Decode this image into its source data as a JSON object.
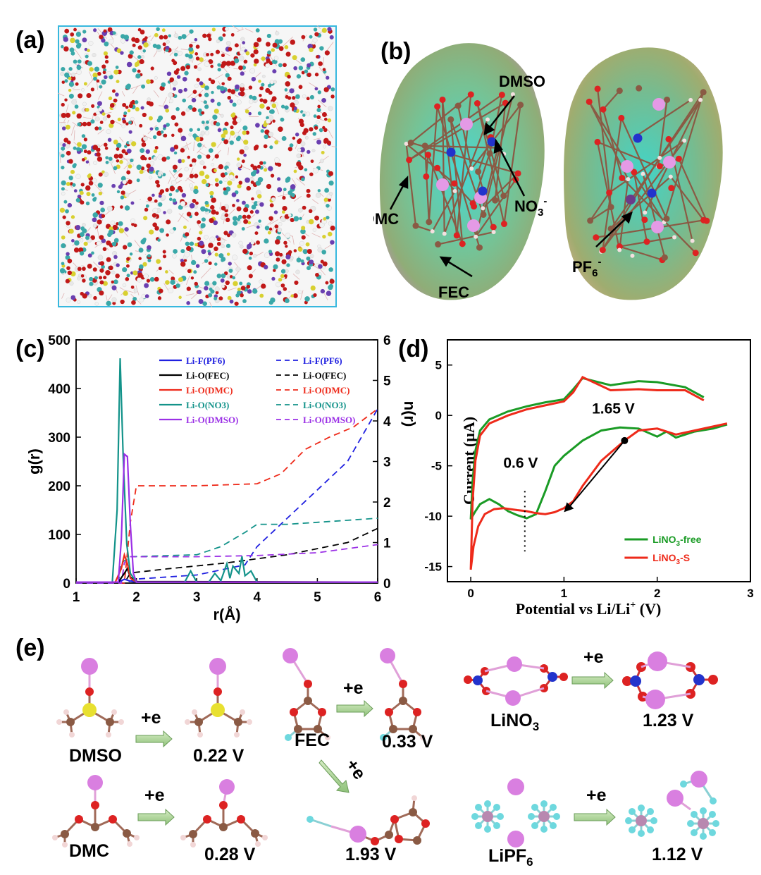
{
  "figure": {
    "panel_a": {
      "label": "(a)"
    },
    "panel_b": {
      "label": "(b)",
      "annotations": {
        "dmso": "DMSO",
        "no3": "NO",
        "no3_sub": "3",
        "no3_sup": "-",
        "dmc": "DMC",
        "fec": "FEC",
        "pf6": "PF",
        "pf6_sub": "6",
        "pf6_sup": "-"
      }
    },
    "panel_c": {
      "label": "(c)",
      "chart_data": {
        "type": "line",
        "xlabel": "r(Å)",
        "ylabel_left": "g(r)",
        "ylabel_right": "n(r)",
        "xlim": [
          1,
          6
        ],
        "ylim_left": [
          0,
          500
        ],
        "ylim_right": [
          0,
          6
        ],
        "x_ticks": [
          "1",
          "2",
          "3",
          "4",
          "5",
          "6"
        ],
        "y_ticks_left": [
          "0",
          "100",
          "200",
          "300",
          "400",
          "500"
        ],
        "y_ticks_right": [
          "0",
          "1",
          "2",
          "3",
          "4",
          "5",
          "6"
        ],
        "legend_solid": [
          "Li-F(PF6)",
          "Li-O(FEC)",
          "Li-O(DMC)",
          "Li-O(NO3)",
          "Li-O(DMSO)"
        ],
        "legend_dashed": [
          "Li-F(PF6)",
          "Li-O(FEC)",
          "Li-O(DMC)",
          "Li-O(NO3)",
          "Li-O(DMSO)"
        ],
        "colors": [
          "#2020e0",
          "#000000",
          "#ee2a1a",
          "#13938a",
          "#9b30e6"
        ],
        "series_solid": [
          {
            "name": "Li-F(PF6)",
            "x": [
              1.0,
              1.7,
              1.8,
              1.9,
              2.0,
              6.0
            ],
            "y": [
              2,
              2,
              8,
              4,
              2,
              2
            ]
          },
          {
            "name": "Li-O(FEC)",
            "x": [
              1.0,
              1.7,
              1.8,
              1.85,
              1.9,
              2.0,
              6.0
            ],
            "y": [
              2,
              2,
              20,
              30,
              12,
              3,
              2
            ]
          },
          {
            "name": "Li-O(DMC)",
            "x": [
              1.0,
              1.65,
              1.75,
              1.8,
              1.85,
              1.9,
              2.0,
              6.0
            ],
            "y": [
              2,
              2,
              30,
              58,
              40,
              10,
              2,
              2
            ]
          },
          {
            "name": "Li-O(NO3)",
            "x": [
              1.0,
              1.6,
              1.68,
              1.73,
              1.78,
              1.84,
              1.9,
              2.0,
              2.8,
              2.9,
              3.0,
              3.2,
              3.3,
              3.4,
              3.5,
              3.55,
              3.6,
              3.7,
              3.75,
              3.8,
              3.9,
              4.0,
              6.0
            ],
            "y": [
              2,
              2,
              150,
              462,
              260,
              80,
              20,
              2,
              2,
              25,
              2,
              2,
              20,
              5,
              40,
              10,
              35,
              20,
              55,
              15,
              25,
              2,
              2
            ]
          },
          {
            "name": "Li-O(DMSO)",
            "x": [
              1.0,
              1.7,
              1.75,
              1.8,
              1.85,
              1.9,
              1.95,
              2.0,
              6.0
            ],
            "y": [
              2,
              2,
              90,
              265,
              260,
              120,
              20,
              2,
              2
            ]
          }
        ],
        "series_dashed": [
          {
            "name": "Li-F(PF6)",
            "x": [
              1.0,
              1.8,
              2.0,
              3.0,
              3.8,
              4.0,
              4.5,
              5.0,
              5.5,
              6.0
            ],
            "y": [
              0,
              0,
              0.1,
              0.2,
              0.45,
              0.9,
              1.6,
              2.3,
              3.0,
              4.3
            ]
          },
          {
            "name": "Li-O(FEC)",
            "x": [
              1.0,
              1.8,
              1.9,
              2.5,
              3.5,
              4.0,
              4.5,
              5.0,
              5.5,
              6.0
            ],
            "y": [
              0,
              0,
              0.25,
              0.35,
              0.5,
              0.6,
              0.7,
              0.85,
              1.0,
              1.35
            ]
          },
          {
            "name": "Li-O(DMC)",
            "x": [
              1.0,
              1.8,
              1.9,
              2.0,
              3.0,
              4.0,
              4.4,
              4.8,
              5.2,
              5.6,
              6.0
            ],
            "y": [
              0,
              0,
              1.5,
              2.4,
              2.4,
              2.45,
              2.7,
              3.3,
              3.6,
              3.85,
              4.3
            ]
          },
          {
            "name": "Li-O(NO3)",
            "x": [
              1.0,
              1.7,
              1.75,
              1.9,
              3.0,
              3.4,
              3.8,
              4.0,
              4.5,
              5.0,
              6.0
            ],
            "y": [
              0,
              0,
              0.5,
              0.65,
              0.7,
              0.9,
              1.25,
              1.45,
              1.45,
              1.5,
              1.6
            ]
          },
          {
            "name": "Li-O(DMSO)",
            "x": [
              1.0,
              1.75,
              1.8,
              1.9,
              3.0,
              4.0,
              5.0,
              6.0
            ],
            "y": [
              0,
              0,
              0.5,
              0.65,
              0.65,
              0.68,
              0.75,
              0.95
            ]
          }
        ]
      }
    },
    "panel_d": {
      "label": "(d)",
      "annotations": {
        "v165": "1.65 V",
        "v06": "0.6 V"
      },
      "chart_data": {
        "type": "line",
        "xlabel": "Potential vs Li/Li",
        "xlabel_sup": "+",
        "xlabel_unit": " (V)",
        "ylabel": "Current (μA)",
        "xlim": [
          -0.25,
          3
        ],
        "ylim": [
          -16.5,
          7.5
        ],
        "x_ticks": [
          "0",
          "1",
          "2",
          "3"
        ],
        "y_ticks": [
          "5",
          "0",
          "-5",
          "-10",
          "-15"
        ],
        "legend": [
          {
            "label": "LiNO",
            "sub": "3",
            "tail": "-free",
            "color": "#1a9b25"
          },
          {
            "label": "LiNO",
            "sub": "3",
            "tail": "-S",
            "color": "#ee2a1a"
          }
        ],
        "series": [
          {
            "name": "LiNO3-free",
            "x": [
              2.5,
              2.3,
              2.0,
              1.8,
              1.5,
              1.2,
              1.1,
              1.0,
              0.8,
              0.6,
              0.4,
              0.2,
              0.1,
              0.05,
              0.02,
              0.0,
              0.0,
              0.05,
              0.1,
              0.2,
              0.3,
              0.4,
              0.5,
              0.6,
              0.7,
              0.8,
              0.9,
              1.0,
              1.2,
              1.4,
              1.6,
              1.8,
              2.0,
              2.1,
              2.2,
              2.4,
              2.6,
              2.75
            ],
            "y": [
              1.8,
              2.8,
              3.3,
              3.4,
              3.0,
              3.7,
              2.6,
              1.6,
              1.3,
              0.9,
              0.4,
              -0.4,
              -1.5,
              -3.5,
              -6.5,
              -10.3,
              -10.3,
              -9.5,
              -8.8,
              -8.3,
              -8.8,
              -9.5,
              -9.9,
              -10.2,
              -9.8,
              -7.5,
              -5.0,
              -4.0,
              -2.5,
              -1.5,
              -1.2,
              -1.3,
              -2.1,
              -1.6,
              -2.2,
              -1.6,
              -1.3,
              -0.9
            ]
          },
          {
            "name": "LiNO3-S",
            "x": [
              2.5,
              2.3,
              2.0,
              1.8,
              1.5,
              1.2,
              1.1,
              1.0,
              0.8,
              0.6,
              0.4,
              0.2,
              0.1,
              0.05,
              0.02,
              0.0,
              0.0,
              0.03,
              0.08,
              0.15,
              0.25,
              0.35,
              0.5,
              0.6,
              0.7,
              0.8,
              0.9,
              1.0,
              1.1,
              1.2,
              1.4,
              1.65,
              1.8,
              2.0,
              2.2,
              2.4,
              2.6,
              2.75
            ],
            "y": [
              1.5,
              2.5,
              2.5,
              2.6,
              2.5,
              3.8,
              2.3,
              1.4,
              1.0,
              0.6,
              0.0,
              -0.8,
              -2.0,
              -4.5,
              -8.5,
              -15.3,
              -15.3,
              -13.0,
              -11.0,
              -9.8,
              -9.3,
              -9.2,
              -9.4,
              -9.5,
              -9.7,
              -9.8,
              -9.6,
              -9.2,
              -8.5,
              -7.0,
              -4.5,
              -2.5,
              -1.5,
              -1.3,
              -1.9,
              -1.5,
              -1.1,
              -0.8
            ]
          }
        ]
      }
    },
    "panel_e": {
      "label": "(e)",
      "plus_e": "+e",
      "molecules": {
        "dmso": "DMSO",
        "dmc": "DMC",
        "fec": "FEC",
        "lino3": "LiNO",
        "lino3_sub": "3",
        "lipf6": "LiPF",
        "lipf6_sub": "6"
      },
      "voltages": {
        "dmso": "0.22 V",
        "dmc": "0.28 V",
        "fec1": "0.33 V",
        "fec2": "1.93 V",
        "lino3": "1.23 V",
        "lipf6": "1.12 V"
      }
    }
  }
}
